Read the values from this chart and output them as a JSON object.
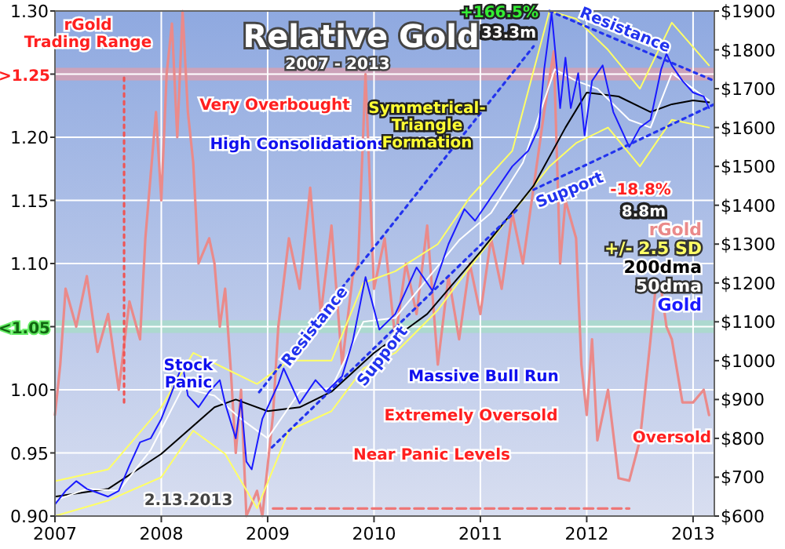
{
  "chart_data": {
    "type": "line",
    "title": "Relative Gold",
    "subtitle": "2007 - 2013",
    "xlim": [
      2007,
      2013.2
    ],
    "xticks": [
      2007,
      2008,
      2009,
      2010,
      2011,
      2012,
      2013
    ],
    "ylim": [
      0.9,
      1.3
    ],
    "yticks": [
      {
        "value": 0.9,
        "label": "0.90"
      },
      {
        "value": 0.95,
        "label": "0.95"
      },
      {
        "value": 1,
        "label": "1.00"
      },
      {
        "value": 1.05,
        "label": null
      },
      {
        "value": 1.1,
        "label": "1.10"
      },
      {
        "value": 1.15,
        "label": "1.15"
      },
      {
        "value": 1.2,
        "label": "1.20"
      },
      {
        "value": 1.25,
        "label": null
      },
      {
        "value": 1.3,
        "label": "1.30"
      }
    ],
    "y2lim": [
      600,
      1900
    ],
    "y2ticks": [
      {
        "value": 600,
        "label": "$600"
      },
      {
        "value": 700,
        "label": "$700"
      },
      {
        "value": 800,
        "label": "$800"
      },
      {
        "value": 900,
        "label": "$900"
      },
      {
        "value": 1000,
        "label": "$1000"
      },
      {
        "value": 1100,
        "label": "$1100"
      },
      {
        "value": 1200,
        "label": "$1200"
      },
      {
        "value": 1300,
        "label": "$1300"
      },
      {
        "value": 1400,
        "label": "$1400"
      },
      {
        "value": 1500,
        "label": "$1500"
      },
      {
        "value": 1600,
        "label": "$1600"
      },
      {
        "value": 1700,
        "label": "$1700"
      },
      {
        "value": 1800,
        "label": "$1800"
      },
      {
        "value": 1900,
        "label": "$1900"
      }
    ],
    "grid": true,
    "bands": [
      {
        "axis": "y",
        "from": 1.245,
        "to": 1.255,
        "label": ">1.25",
        "color": "#d9a0b0"
      },
      {
        "axis": "y",
        "from": 1.045,
        "to": 1.055,
        "label": "<1.05",
        "color": "#a8dcc8"
      }
    ],
    "series": [
      {
        "name": "rGold",
        "color": "#ea8a8a",
        "x": [
          2007.0,
          2007.05,
          2007.1,
          2007.2,
          2007.3,
          2007.4,
          2007.5,
          2007.6,
          2007.7,
          2007.8,
          2007.85,
          2007.95,
          2008.0,
          2008.05,
          2008.1,
          2008.15,
          2008.2,
          2008.25,
          2008.3,
          2008.35,
          2008.45,
          2008.5,
          2008.55,
          2008.6,
          2008.65,
          2008.7,
          2008.75,
          2008.8,
          2008.9,
          2008.95,
          2009.05,
          2009.1,
          2009.2,
          2009.3,
          2009.4,
          2009.5,
          2009.6,
          2009.7,
          2009.8,
          2009.85,
          2009.92,
          2010.0,
          2010.1,
          2010.2,
          2010.3,
          2010.4,
          2010.5,
          2010.6,
          2010.7,
          2010.8,
          2010.9,
          2011.0,
          2011.1,
          2011.2,
          2011.3,
          2011.4,
          2011.5,
          2011.6,
          2011.69,
          2011.75,
          2011.8,
          2011.9,
          2011.95,
          2012.0,
          2012.05,
          2012.1,
          2012.2,
          2012.3,
          2012.4,
          2012.5,
          2012.6,
          2012.65,
          2012.7,
          2012.75,
          2012.8,
          2012.9,
          2013.0,
          2013.1,
          2013.15
        ],
        "values": [
          0.98,
          1.02,
          1.08,
          1.05,
          1.09,
          1.03,
          1.06,
          1.0,
          1.07,
          1.04,
          1.12,
          1.22,
          1.15,
          1.25,
          1.29,
          1.2,
          1.3,
          1.22,
          1.18,
          1.1,
          1.12,
          1.1,
          1.05,
          1.08,
          1.02,
          0.95,
          1.0,
          0.9,
          0.92,
          0.9,
          0.98,
          1.05,
          1.12,
          1.08,
          1.16,
          1.06,
          1.13,
          1.02,
          1.09,
          1.1,
          1.25,
          1.08,
          1.12,
          1.04,
          1.1,
          1.06,
          1.13,
          1.02,
          1.09,
          1.04,
          1.1,
          1.06,
          1.12,
          1.08,
          1.14,
          1.1,
          1.16,
          1.22,
          1.268,
          1.1,
          1.15,
          1.12,
          1.02,
          0.98,
          1.04,
          0.96,
          1.0,
          0.93,
          0.928,
          0.96,
          1.04,
          1.083,
          1.08,
          1.05,
          1.04,
          0.99,
          0.99,
          1.0,
          0.98
        ]
      },
      {
        "name": "+/- 2.5 SD",
        "color": "#ffff66",
        "axis": "y2",
        "x": [
          2007.0,
          2007.5,
          2008.0,
          2008.3,
          2008.6,
          2008.9,
          2009.2,
          2009.6,
          2009.9,
          2010.2,
          2010.6,
          2010.9,
          2011.3,
          2011.65,
          2011.9,
          2012.2,
          2012.5,
          2012.8,
          2013.15
        ],
        "values": [
          690,
          720,
          880,
          1020,
          980,
          940,
          1000,
          1000,
          1200,
          1230,
          1300,
          1420,
          1540,
          1900,
          1880,
          1800,
          1700,
          1870,
          1760
        ]
      },
      {
        "color": "#ffff66",
        "axis": "y2",
        "x": [
          2007.0,
          2007.5,
          2008.0,
          2008.3,
          2008.6,
          2008.9,
          2009.2,
          2009.6,
          2009.9,
          2010.2,
          2010.6,
          2010.9,
          2011.3,
          2011.65,
          2011.9,
          2012.2,
          2012.5,
          2012.8,
          2013.15
        ],
        "values": [
          600,
          640,
          700,
          820,
          760,
          620,
          820,
          870,
          980,
          1020,
          1130,
          1240,
          1380,
          1500,
          1560,
          1600,
          1500,
          1620,
          1600
        ]
      },
      {
        "name": "200dma",
        "color": "#000000",
        "axis": "y2",
        "x": [
          2007.0,
          2007.5,
          2008.0,
          2008.5,
          2008.7,
          2009.0,
          2009.3,
          2009.6,
          2009.8,
          2010.0,
          2010.5,
          2011.0,
          2011.5,
          2011.8,
          2012.0,
          2012.3,
          2012.6,
          2012.8,
          2013.0,
          2013.15
        ],
        "values": [
          650,
          670,
          760,
          880,
          900,
          870,
          880,
          920,
          970,
          1020,
          1120,
          1280,
          1450,
          1600,
          1690,
          1680,
          1640,
          1660,
          1670,
          1665
        ]
      },
      {
        "name": "50dma",
        "color": "#ffffff",
        "axis": "y2",
        "x": [
          2007.0,
          2007.3,
          2007.6,
          2007.9,
          2008.2,
          2008.5,
          2008.75,
          2009.0,
          2009.3,
          2009.6,
          2009.9,
          2010.2,
          2010.5,
          2010.8,
          2011.1,
          2011.4,
          2011.7,
          2011.9,
          2012.1,
          2012.4,
          2012.6,
          2012.8,
          2013.0,
          2013.15
        ],
        "values": [
          640,
          670,
          665,
          770,
          930,
          910,
          850,
          800,
          920,
          930,
          1100,
          1110,
          1210,
          1310,
          1380,
          1510,
          1750,
          1720,
          1700,
          1620,
          1600,
          1740,
          1700,
          1670
        ]
      },
      {
        "name": "Gold",
        "color": "#1a1aff",
        "axis": "y2",
        "x": [
          2007.0,
          2007.1,
          2007.2,
          2007.3,
          2007.4,
          2007.5,
          2007.6,
          2007.7,
          2007.8,
          2007.9,
          2008.0,
          2008.1,
          2008.2,
          2008.25,
          2008.35,
          2008.45,
          2008.55,
          2008.6,
          2008.7,
          2008.75,
          2008.8,
          2008.85,
          2008.95,
          2009.1,
          2009.15,
          2009.3,
          2009.45,
          2009.55,
          2009.7,
          2009.8,
          2009.92,
          2010.05,
          2010.2,
          2010.4,
          2010.55,
          2010.7,
          2010.85,
          2010.95,
          2011.1,
          2011.3,
          2011.45,
          2011.55,
          2011.6,
          2011.67,
          2011.72,
          2011.75,
          2011.8,
          2011.85,
          2011.92,
          2011.98,
          2012.05,
          2012.15,
          2012.25,
          2012.4,
          2012.5,
          2012.6,
          2012.7,
          2012.75,
          2012.8,
          2012.9,
          2013.0,
          2013.1,
          2013.15
        ],
        "values": [
          630,
          665,
          690,
          670,
          660,
          650,
          665,
          730,
          790,
          800,
          850,
          920,
          990,
          910,
          880,
          920,
          950,
          890,
          800,
          900,
          740,
          720,
          850,
          940,
          980,
          890,
          950,
          920,
          960,
          1050,
          1215,
          1080,
          1120,
          1240,
          1180,
          1300,
          1390,
          1360,
          1420,
          1500,
          1540,
          1600,
          1750,
          1895,
          1750,
          1650,
          1780,
          1650,
          1740,
          1580,
          1720,
          1760,
          1640,
          1550,
          1600,
          1620,
          1750,
          1790,
          1760,
          1720,
          1690,
          1680,
          1650
        ]
      },
      {
        "color": "#2233ee",
        "axis": "y2",
        "line_style": "dotted",
        "x": [
          2008.92,
          2011.5
        ],
        "values": [
          919,
          1809
        ]
      },
      {
        "color": "#2233ee",
        "axis": "y2",
        "line_style": "dotted",
        "x": [
          2009.04,
          2011.35
        ],
        "values": [
          777,
          1390
        ]
      },
      {
        "color": "#2233ee",
        "axis": "y2",
        "line_style": "dotted",
        "x": [
          2011.65,
          2013.2
        ],
        "values": [
          1900,
          1720
        ]
      },
      {
        "color": "#2233ee",
        "axis": "y2",
        "line_style": "dotted",
        "x": [
          2011.5,
          2013.2
        ],
        "values": [
          1440,
          1660
        ]
      },
      {
        "color": "#ee7777",
        "line_style": "dashed",
        "x": [
          2009.05,
          2012.4
        ],
        "values": [
          0.906,
          0.906
        ]
      },
      {
        "color": "#ee5555",
        "line_style": "dotted",
        "x": [
          2007.65,
          2007.65
        ],
        "values": [
          0.99,
          1.25
        ]
      }
    ],
    "annotations": [
      "rGold Trading Range",
      "Very Overbought",
      "High Consolidations",
      "Symmetrical-Triangle Formation",
      "+166.5%",
      "33.3m",
      "-18.8%",
      "8.8m",
      "Stock Panic",
      "Massive Bull Run",
      "Extremely Oversold",
      "Near Panic Levels",
      "Oversold",
      "2.13.2013",
      "Resistance",
      "Support",
      "Resistance",
      "Support"
    ]
  }
}
